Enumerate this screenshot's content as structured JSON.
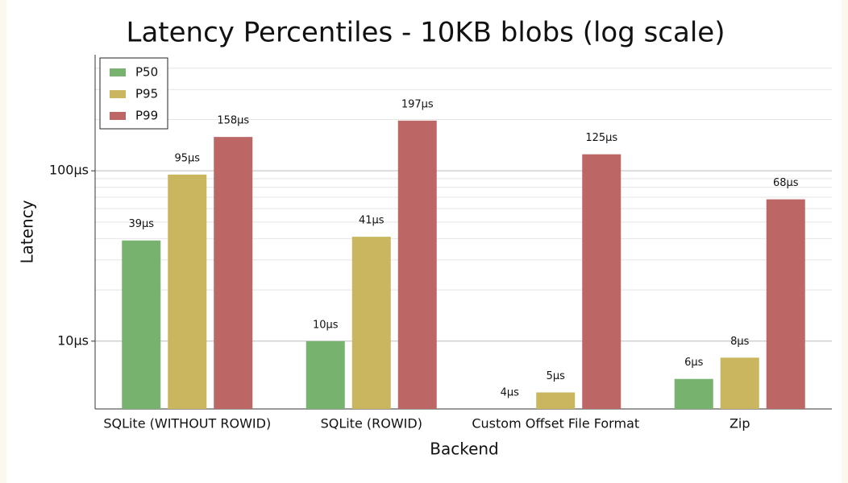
{
  "chart_data": {
    "type": "bar",
    "title": "Latency Percentiles - 10KB blobs (log scale)",
    "x_label": "Backend",
    "y_label": "Latency",
    "categories": [
      "SQLite (WITHOUT ROWID)",
      "SQLite (ROWID)",
      "Custom Offset File Format",
      "Zip"
    ],
    "series": [
      {
        "name": "P50",
        "color": "#77b36f",
        "values": [
          39,
          10,
          4,
          6
        ],
        "value_labels": [
          "39μs",
          "10μs",
          "4μs",
          "6μs"
        ]
      },
      {
        "name": "P95",
        "color": "#c9b65e",
        "values": [
          95,
          41,
          5,
          8
        ],
        "value_labels": [
          "95μs",
          "41μs",
          "5μs",
          "8μs"
        ]
      },
      {
        "name": "P99",
        "color": "#bd6666",
        "values": [
          158,
          197,
          125,
          68
        ],
        "value_labels": [
          "158μs",
          "197μs",
          "125μs",
          "68μs"
        ]
      }
    ],
    "log_scale": true,
    "ylim": [
      4,
      480
    ],
    "yticks": [
      {
        "value": 10,
        "label": "10μs"
      },
      {
        "value": 100,
        "label": "100μs"
      }
    ],
    "minor_yticks": [
      20,
      30,
      40,
      50,
      60,
      70,
      80,
      90,
      200,
      300,
      400
    ],
    "grid": true,
    "legend_position": "upper left"
  }
}
